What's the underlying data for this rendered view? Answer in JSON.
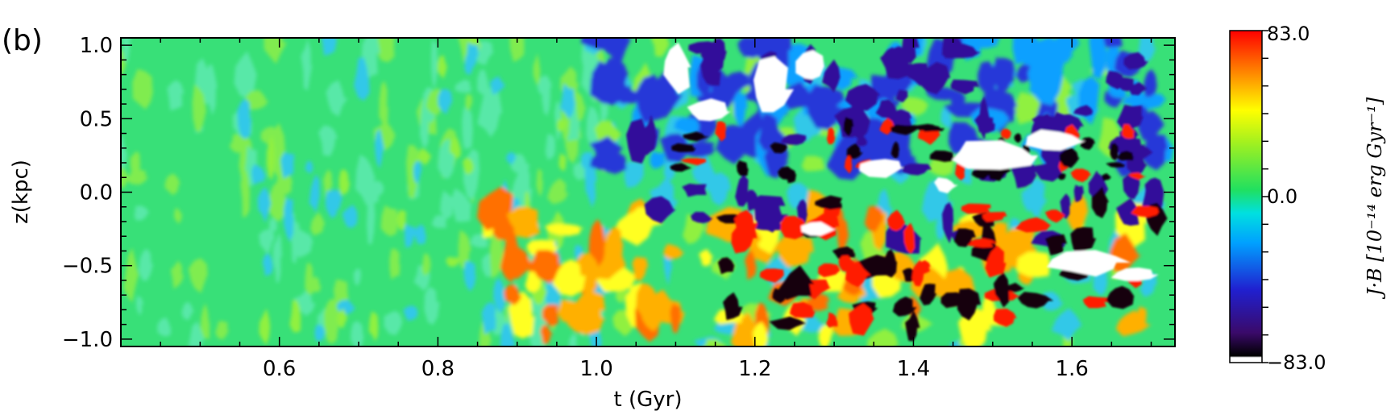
{
  "panel_label": "(b)",
  "chart_data": {
    "type": "heatmap",
    "xlabel": "t (Gyr)",
    "ylabel": "z(kpc)",
    "xlim": [
      0.4,
      1.73
    ],
    "ylim": [
      -1.05,
      1.05
    ],
    "x_ticks": [
      0.6,
      0.8,
      1.0,
      1.2,
      1.4,
      1.6
    ],
    "x_tick_labels": [
      "0.6",
      "0.8",
      "1.0",
      "1.2",
      "1.4",
      "1.6"
    ],
    "y_ticks": [
      1.0,
      0.5,
      0.0,
      -0.5,
      -1.0
    ],
    "y_tick_labels": [
      "1.0",
      "0.5",
      "0.0",
      "−0.5",
      "−1.0"
    ],
    "colorbar": {
      "min": -83.0,
      "max": 83.0,
      "tick_labels": [
        "83.0",
        "0.0",
        "−83.0"
      ],
      "label": "J·B [10⁻¹⁴ erg Gyr⁻¹]",
      "colormap": "rainbow-with-white-below-min",
      "colors": [
        "#ffffff",
        "#000000",
        "#3a0a6a",
        "#2020d0",
        "#00a0ff",
        "#00e0e0",
        "#20e060",
        "#a0f020",
        "#ffff00",
        "#ff8000",
        "#ff0000"
      ]
    },
    "description_features": [
      {
        "t_range": [
          0.4,
          0.95
        ],
        "z_range": [
          -1.0,
          1.0
        ],
        "value_level": "near zero (green/cyan)"
      },
      {
        "t_range": [
          1.05,
          1.7
        ],
        "z_range": [
          0.4,
          1.0
        ],
        "value_level": "strong negative (blue, white)"
      },
      {
        "t_range": [
          1.1,
          1.7
        ],
        "z_range": [
          -0.5,
          0.4
        ],
        "value_level": "mixed strong positive and negative"
      },
      {
        "t_range": [
          1.2,
          1.5
        ],
        "z_range": [
          -1.0,
          -0.5
        ],
        "value_level": "strong positive (red/black)"
      }
    ]
  }
}
